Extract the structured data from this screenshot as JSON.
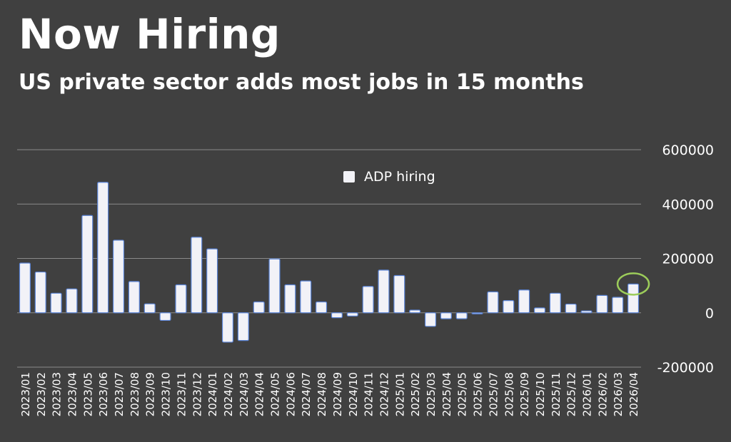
{
  "header": {
    "title": "Now Hiring",
    "subtitle": "US private sector adds most jobs in 15 months"
  },
  "colors": {
    "background": "#404040",
    "bar_fill": "#f2f2f7",
    "bar_stroke": "#5b84d6",
    "gridline": "#8a8a8a",
    "highlight": "#9ccc5a",
    "text": "#ffffff"
  },
  "chart_data": {
    "type": "bar",
    "legend": {
      "entries": [
        "ADP hiring"
      ],
      "position": "top-center"
    },
    "ylim": [
      -200000,
      600000
    ],
    "yticks": [
      600000,
      400000,
      200000,
      0,
      -200000
    ],
    "ytick_labels": [
      "600000",
      "400000",
      "200000",
      "0",
      "-200000"
    ],
    "y_axis_side": "right",
    "grid": true,
    "highlight_category": "2026/04",
    "categories": [
      "2023/01",
      "2023/02",
      "2023/03",
      "2023/04",
      "2023/05",
      "2023/06",
      "2023/07",
      "2023/08",
      "2023/09",
      "2023/10",
      "2023/11",
      "2023/12",
      "2024/01",
      "2024/02",
      "2024/03",
      "2024/04",
      "2024/05",
      "2024/06",
      "2024/07",
      "2024/08",
      "2024/09",
      "2024/10",
      "2024/11",
      "2024/12",
      "2025/01",
      "2025/02",
      "2025/03",
      "2025/04",
      "2025/05",
      "2025/06",
      "2025/07",
      "2025/08",
      "2025/09",
      "2025/10",
      "2025/11",
      "2025/12",
      "2026/01",
      "2026/02",
      "2026/03",
      "2026/04"
    ],
    "series": [
      {
        "name": "ADP hiring",
        "values": [
          183000,
          150000,
          72000,
          88000,
          358000,
          480000,
          267000,
          115000,
          33000,
          -28000,
          103000,
          278000,
          235000,
          -108000,
          -102000,
          40000,
          198000,
          103000,
          117000,
          40000,
          -18000,
          -12000,
          97000,
          157000,
          137000,
          10000,
          -50000,
          -22000,
          -22000,
          -2000,
          77000,
          45000,
          84000,
          18000,
          72000,
          32000,
          7000,
          64000,
          57000,
          106000
        ]
      }
    ]
  }
}
